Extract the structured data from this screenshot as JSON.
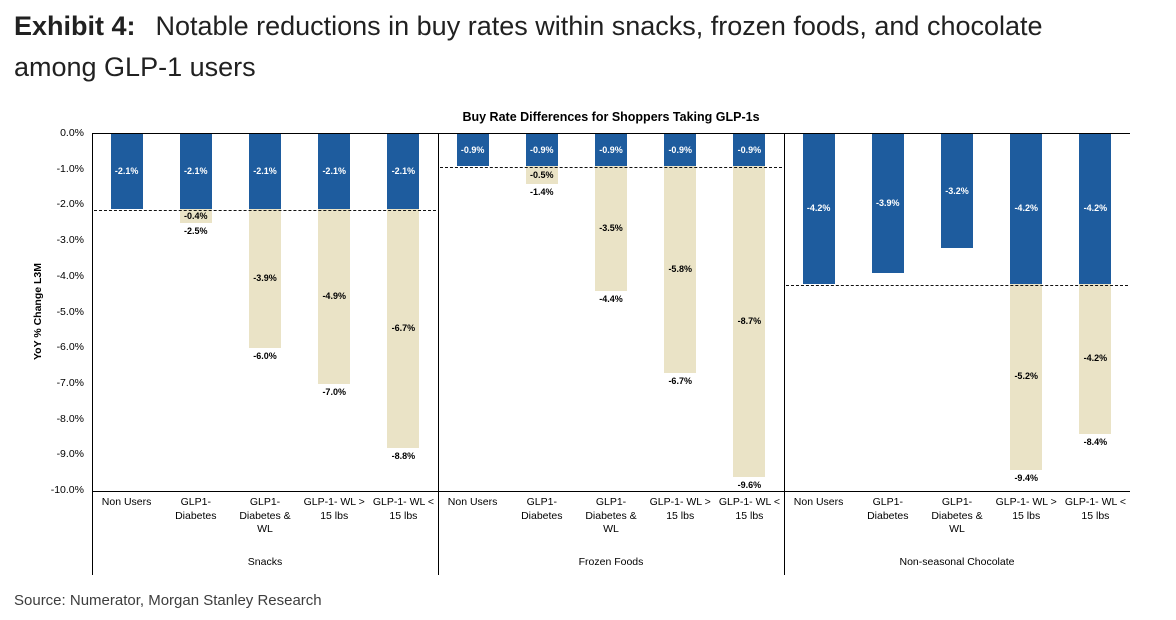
{
  "page": {
    "exhibit_label": "Exhibit 4:",
    "exhibit_title": "Notable reductions in buy rates within snacks, frozen foods, and chocolate among GLP-1 users",
    "source_note": "Source: Numerator, Morgan Stanley Research"
  },
  "chart_data": {
    "type": "bar",
    "title": "Buy Rate Differences for Shoppers Taking GLP-1s",
    "ylabel": "YoY % Change L3M",
    "ylim": [
      -10,
      0
    ],
    "ytick_labels": [
      "0.0%",
      "-1.0%",
      "-2.0%",
      "-3.0%",
      "-4.0%",
      "-5.0%",
      "-6.0%",
      "-7.0%",
      "-8.0%",
      "-9.0%",
      "-10.0%"
    ],
    "colors": {
      "baseline_blue": "#1E5C9E",
      "glp1_tan": "#EAE3C6"
    },
    "categories": [
      "Non Users",
      "GLP1-Diabetes",
      "GLP1-Diabetes & WL",
      "GLP-1- WL > 15 lbs",
      "GLP-1- WL < 15 lbs"
    ],
    "groups": [
      {
        "label": "Snacks",
        "dashed_baseline": -2.1,
        "bars": [
          {
            "category": "Non Users",
            "blue_value": -2.1,
            "blue_label": "-2.1%",
            "tan_value": null,
            "diff_label": null,
            "total_label": null
          },
          {
            "category": "GLP1-Diabetes",
            "blue_value": -2.1,
            "blue_label": "-2.1%",
            "tan_value": -2.5,
            "diff_label": "-0.4%",
            "total_label": "-2.5%"
          },
          {
            "category": "GLP1-Diabetes & WL",
            "blue_value": -2.1,
            "blue_label": "-2.1%",
            "tan_value": -6.0,
            "diff_label": "-3.9%",
            "total_label": "-6.0%"
          },
          {
            "category": "GLP-1- WL > 15 lbs",
            "blue_value": -2.1,
            "blue_label": "-2.1%",
            "tan_value": -7.0,
            "diff_label": "-4.9%",
            "total_label": "-7.0%"
          },
          {
            "category": "GLP-1- WL < 15 lbs",
            "blue_value": -2.1,
            "blue_label": "-2.1%",
            "tan_value": -8.8,
            "diff_label": "-6.7%",
            "total_label": "-8.8%"
          }
        ]
      },
      {
        "label": "Frozen Foods",
        "dashed_baseline": -0.9,
        "bars": [
          {
            "category": "Non Users",
            "blue_value": -0.9,
            "blue_label": "-0.9%",
            "tan_value": null,
            "diff_label": null,
            "total_label": null
          },
          {
            "category": "GLP1-Diabetes",
            "blue_value": -0.9,
            "blue_label": "-0.9%",
            "tan_value": -1.4,
            "diff_label": "-0.5%",
            "total_label": "-1.4%"
          },
          {
            "category": "GLP1-Diabetes & WL",
            "blue_value": -0.9,
            "blue_label": "-0.9%",
            "tan_value": -4.4,
            "diff_label": "-3.5%",
            "total_label": "-4.4%"
          },
          {
            "category": "GLP-1- WL > 15 lbs",
            "blue_value": -0.9,
            "blue_label": "-0.9%",
            "tan_value": -6.7,
            "diff_label": "-5.8%",
            "total_label": "-6.7%"
          },
          {
            "category": "GLP-1- WL < 15 lbs",
            "blue_value": -0.9,
            "blue_label": "-0.9%",
            "tan_value": -9.6,
            "diff_label": "-8.7%",
            "total_label": "-9.6%"
          }
        ]
      },
      {
        "label": "Non-seasonal Chocolate",
        "dashed_baseline": -4.2,
        "bars": [
          {
            "category": "Non Users",
            "blue_value": -4.2,
            "blue_label": "-4.2%",
            "tan_value": null,
            "diff_label": null,
            "total_label": null
          },
          {
            "category": "GLP1-Diabetes",
            "blue_value": -3.9,
            "blue_label": "-3.9%",
            "tan_value": null,
            "diff_label": null,
            "total_label": null
          },
          {
            "category": "GLP1-Diabetes & WL",
            "blue_value": -3.2,
            "blue_label": "-3.2%",
            "tan_value": null,
            "diff_label": null,
            "total_label": null
          },
          {
            "category": "GLP-1- WL > 15 lbs",
            "blue_value": -4.2,
            "blue_label": "-4.2%",
            "tan_value": -9.4,
            "diff_label": "-5.2%",
            "total_label": "-9.4%"
          },
          {
            "category": "GLP-1- WL < 15 lbs",
            "blue_value": -4.2,
            "blue_label": "-4.2%",
            "tan_value": -8.4,
            "diff_label": "-4.2%",
            "total_label": "-8.4%"
          }
        ]
      }
    ]
  }
}
